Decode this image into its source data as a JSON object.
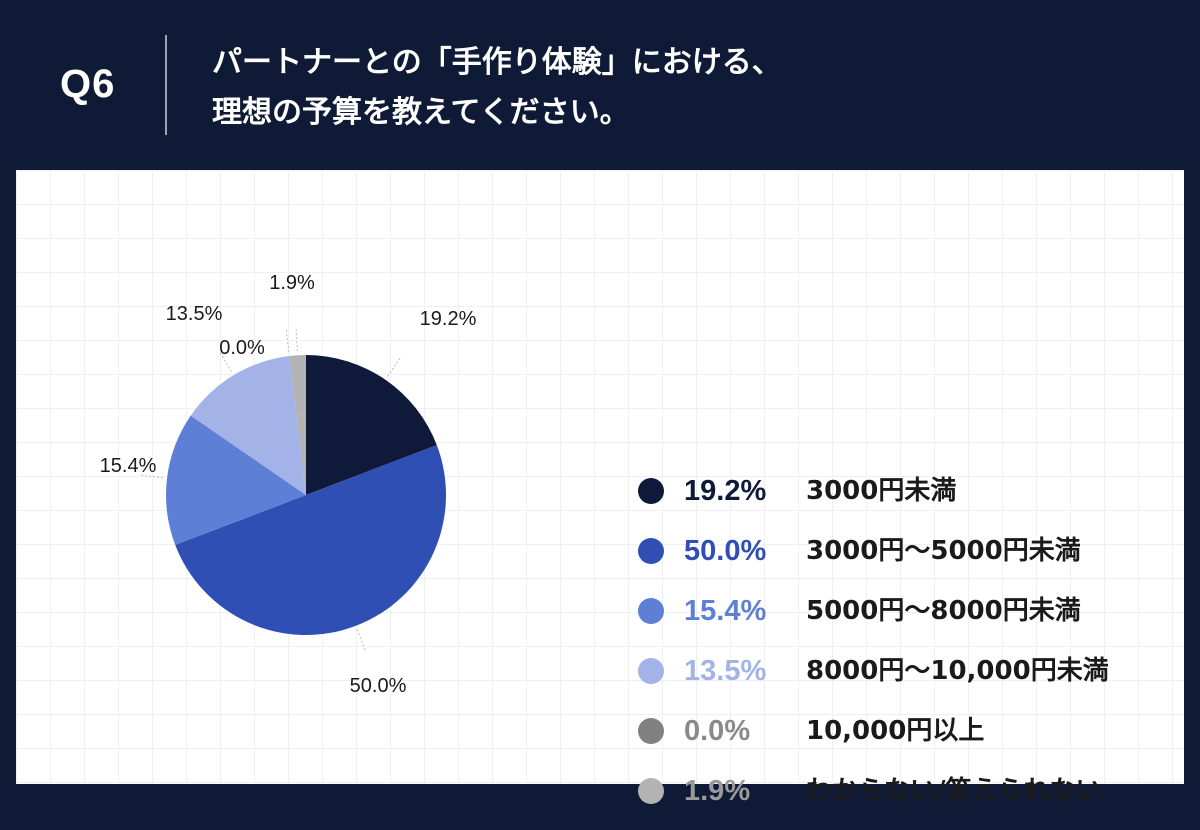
{
  "header": {
    "question_label": "Q6",
    "title_line1": "パートナーとの「手作り体験」における、",
    "title_line2": "理想の予算を教えてください。"
  },
  "colors": {
    "header_bg": "#0f1a36",
    "slices": [
      "#0f1a3a",
      "#2f4fb5",
      "#5e7fd6",
      "#a3b3e8",
      "#808080",
      "#b3b3b3"
    ],
    "legend_value_colors": [
      "#0f1a3a",
      "#2f4fb5",
      "#5e7fd6",
      "#a3b3e8",
      "#8a8a8a",
      "#9a9a9a"
    ]
  },
  "chart_data": {
    "type": "pie",
    "start": "top",
    "direction": "clockwise",
    "categories": [
      "3000円未満",
      "3000円～5000円未満",
      "5000円～8000円未満",
      "8000円～10,000円未満",
      "10,000円以上",
      "わからない/答えられない"
    ],
    "values": [
      19.2,
      50.0,
      15.4,
      13.5,
      0.0,
      1.9
    ],
    "labels": [
      "19.2%",
      "50.0%",
      "15.4%",
      "13.5%",
      "0.0%",
      "1.9%"
    ],
    "legend": "right"
  }
}
